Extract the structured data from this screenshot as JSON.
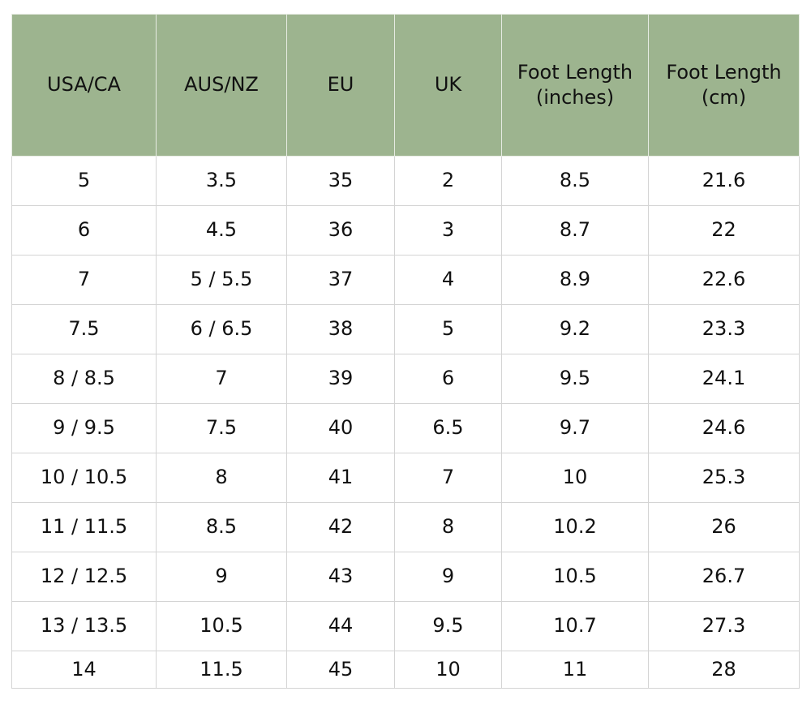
{
  "table": {
    "headers": [
      "USA/CA",
      "AUS/NZ",
      "EU",
      "UK",
      "Foot Length (inches)",
      "Foot Length (cm)"
    ],
    "rows": [
      [
        "5",
        "3.5",
        "35",
        "2",
        "8.5",
        "21.6"
      ],
      [
        "6",
        "4.5",
        "36",
        "3",
        "8.7",
        "22"
      ],
      [
        "7",
        "5 / 5.5",
        "37",
        "4",
        "8.9",
        "22.6"
      ],
      [
        "7.5",
        "6 / 6.5",
        "38",
        "5",
        "9.2",
        "23.3"
      ],
      [
        "8 / 8.5",
        "7",
        "39",
        "6",
        "9.5",
        "24.1"
      ],
      [
        "9 / 9.5",
        "7.5",
        "40",
        "6.5",
        "9.7",
        "24.6"
      ],
      [
        "10 / 10.5",
        "8",
        "41",
        "7",
        "10",
        "25.3"
      ],
      [
        "11 / 11.5",
        "8.5",
        "42",
        "8",
        "10.2",
        "26"
      ],
      [
        "12 / 12.5",
        "9",
        "43",
        "9",
        "10.5",
        "26.7"
      ],
      [
        "13 / 13.5",
        "10.5",
        "44",
        "9.5",
        "10.7",
        "27.3"
      ],
      [
        "14",
        "11.5",
        "45",
        "10",
        "11",
        "28"
      ]
    ]
  }
}
